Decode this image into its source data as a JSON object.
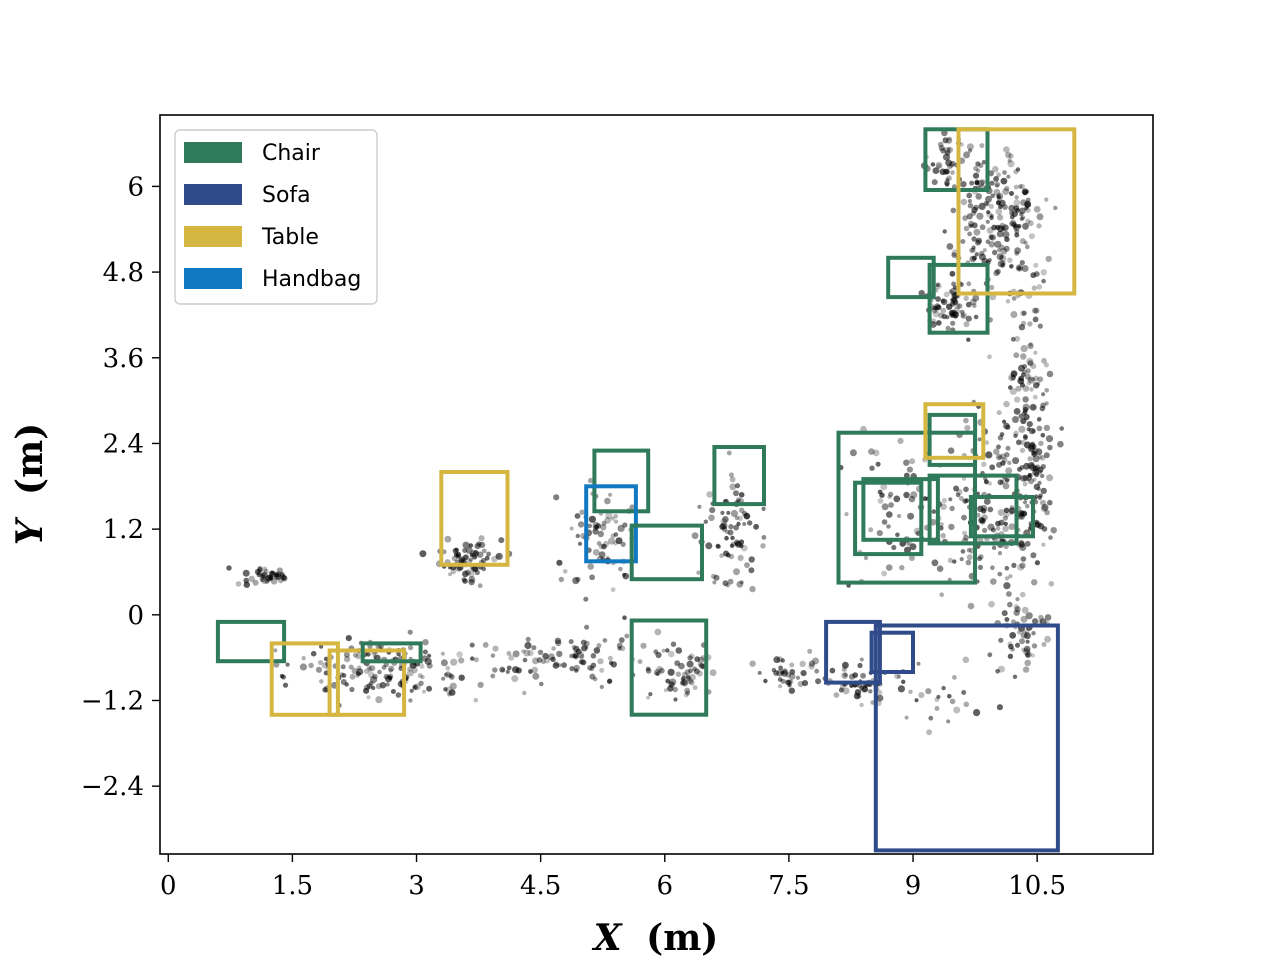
{
  "chart_data": {
    "type": "scatter",
    "title": "",
    "xlabel": {
      "var": "X",
      "unit": "(m)"
    },
    "ylabel": {
      "var": "Y",
      "unit": "(m)"
    },
    "xlim": [
      -0.1,
      11.9
    ],
    "ylim": [
      -3.35,
      7.0
    ],
    "xticks": [
      0,
      1.5,
      3,
      4.5,
      6,
      7.5,
      9,
      10.5
    ],
    "xtick_labels": [
      "0",
      "1.5",
      "3",
      "4.5",
      "6",
      "7.5",
      "9",
      "10.5"
    ],
    "yticks": [
      -2.4,
      -1.2,
      0,
      1.2,
      2.4,
      3.6,
      4.8,
      6
    ],
    "ytick_labels": [
      "−2.4",
      "−1.2",
      "0",
      "1.2",
      "2.4",
      "3.6",
      "4.8",
      "6"
    ],
    "grid": false,
    "legend_position": "top-left",
    "legend": [
      {
        "label": "Chair",
        "color": "#2e7a5a"
      },
      {
        "label": "Sofa",
        "color": "#2f4b8a"
      },
      {
        "label": "Table",
        "color": "#d4b640"
      },
      {
        "label": "Handbag",
        "color": "#1178c2"
      }
    ],
    "point_color": "#000000",
    "point_clusters": [
      {
        "cx": 1.2,
        "cy": 0.55,
        "sx": 0.25,
        "sy": 0.1,
        "n": 40
      },
      {
        "cx": 3.6,
        "cy": 0.75,
        "sx": 0.35,
        "sy": 0.25,
        "n": 70
      },
      {
        "cx": 5.2,
        "cy": 1.1,
        "sx": 0.35,
        "sy": 0.6,
        "n": 70
      },
      {
        "cx": 6.85,
        "cy": 1.2,
        "sx": 0.3,
        "sy": 0.7,
        "n": 80
      },
      {
        "cx": 2.6,
        "cy": -0.8,
        "sx": 0.9,
        "sy": 0.35,
        "n": 160
      },
      {
        "cx": 4.8,
        "cy": -0.6,
        "sx": 0.9,
        "sy": 0.3,
        "n": 90
      },
      {
        "cx": 6.2,
        "cy": -0.8,
        "sx": 0.4,
        "sy": 0.35,
        "n": 60
      },
      {
        "cx": 7.5,
        "cy": -0.8,
        "sx": 0.4,
        "sy": 0.2,
        "n": 40
      },
      {
        "cx": 8.4,
        "cy": -1.0,
        "sx": 0.3,
        "sy": 0.25,
        "n": 50
      },
      {
        "cx": 9.0,
        "cy": 1.4,
        "sx": 0.6,
        "sy": 0.8,
        "n": 90
      },
      {
        "cx": 9.9,
        "cy": 1.6,
        "sx": 0.35,
        "sy": 1.0,
        "n": 120
      },
      {
        "cx": 10.4,
        "cy": 2.5,
        "sx": 0.25,
        "sy": 1.8,
        "n": 220
      },
      {
        "cx": 10.0,
        "cy": 5.6,
        "sx": 0.45,
        "sy": 0.8,
        "n": 200
      },
      {
        "cx": 9.5,
        "cy": 4.3,
        "sx": 0.3,
        "sy": 0.35,
        "n": 70
      },
      {
        "cx": 9.4,
        "cy": 6.4,
        "sx": 0.25,
        "sy": 0.3,
        "n": 40
      },
      {
        "cx": 10.3,
        "cy": -0.3,
        "sx": 0.3,
        "sy": 0.5,
        "n": 50
      },
      {
        "cx": 9.3,
        "cy": -1.2,
        "sx": 0.5,
        "sy": 0.5,
        "n": 25
      }
    ],
    "boxes": [
      {
        "class": "Chair",
        "x0": 0.6,
        "y0": -0.65,
        "x1": 1.4,
        "y1": -0.1
      },
      {
        "class": "Table",
        "x0": 1.25,
        "y0": -1.4,
        "x1": 2.05,
        "y1": -0.4
      },
      {
        "class": "Table",
        "x0": 1.95,
        "y0": -1.4,
        "x1": 2.85,
        "y1": -0.5
      },
      {
        "class": "Chair",
        "x0": 2.35,
        "y0": -0.65,
        "x1": 3.05,
        "y1": -0.4
      },
      {
        "class": "Table",
        "x0": 3.3,
        "y0": 0.7,
        "x1": 4.1,
        "y1": 2.0
      },
      {
        "class": "Chair",
        "x0": 5.15,
        "y0": 1.45,
        "x1": 5.8,
        "y1": 2.3
      },
      {
        "class": "Handbag",
        "x0": 5.05,
        "y0": 0.75,
        "x1": 5.65,
        "y1": 1.8
      },
      {
        "class": "Chair",
        "x0": 5.6,
        "y0": 0.5,
        "x1": 6.45,
        "y1": 1.25
      },
      {
        "class": "Chair",
        "x0": 5.6,
        "y0": -1.4,
        "x1": 6.5,
        "y1": -0.08
      },
      {
        "class": "Chair",
        "x0": 6.6,
        "y0": 1.55,
        "x1": 7.2,
        "y1": 2.35
      },
      {
        "class": "Chair",
        "x0": 8.1,
        "y0": 0.45,
        "x1": 9.75,
        "y1": 2.55
      },
      {
        "class": "Chair",
        "x0": 8.3,
        "y0": 0.85,
        "x1": 9.1,
        "y1": 1.85
      },
      {
        "class": "Chair",
        "x0": 8.4,
        "y0": 1.05,
        "x1": 9.3,
        "y1": 1.9
      },
      {
        "class": "Chair",
        "x0": 9.2,
        "y0": 1.0,
        "x1": 10.25,
        "y1": 1.95
      },
      {
        "class": "Chair",
        "x0": 9.7,
        "y0": 1.1,
        "x1": 10.45,
        "y1": 1.65
      },
      {
        "class": "Chair",
        "x0": 9.2,
        "y0": 2.1,
        "x1": 9.75,
        "y1": 2.8
      },
      {
        "class": "Table",
        "x0": 9.15,
        "y0": 2.2,
        "x1": 9.85,
        "y1": 2.95
      },
      {
        "class": "Chair",
        "x0": 8.7,
        "y0": 4.45,
        "x1": 9.25,
        "y1": 5.0
      },
      {
        "class": "Chair",
        "x0": 9.2,
        "y0": 3.95,
        "x1": 9.9,
        "y1": 4.9
      },
      {
        "class": "Chair",
        "x0": 9.15,
        "y0": 5.95,
        "x1": 9.9,
        "y1": 6.8
      },
      {
        "class": "Table",
        "x0": 9.55,
        "y0": 4.5,
        "x1": 10.95,
        "y1": 6.8
      },
      {
        "class": "Sofa",
        "x0": 7.95,
        "y0": -0.95,
        "x1": 8.6,
        "y1": -0.1
      },
      {
        "class": "Sofa",
        "x0": 8.5,
        "y0": -0.8,
        "x1": 9.0,
        "y1": -0.25
      },
      {
        "class": "Sofa",
        "x0": 8.55,
        "y0": -3.3,
        "x1": 10.75,
        "y1": -0.15
      }
    ]
  }
}
